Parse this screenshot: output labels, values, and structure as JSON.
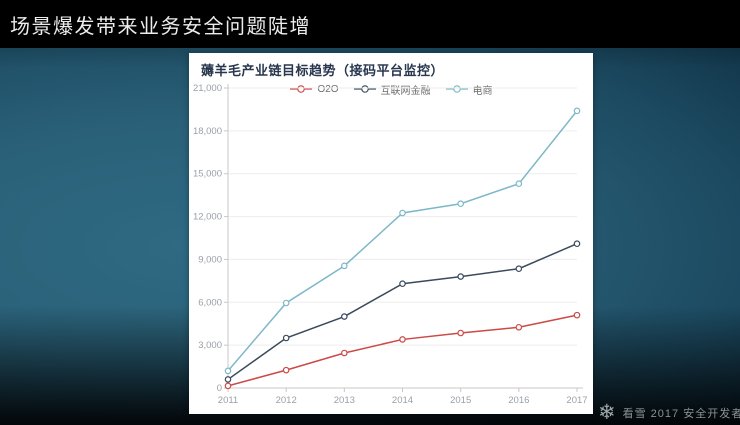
{
  "slide": {
    "title": "场景爆发带来业务安全问题陡增"
  },
  "footer": {
    "logo_icon": "snowflake-icon",
    "brand_text": "看雪 2017 安全开发者"
  },
  "chart_data": {
    "type": "line",
    "title": "薅羊毛产业链目标趋势（接码平台监控）",
    "x": [
      "2011",
      "2012",
      "2013",
      "2014",
      "2015",
      "2016",
      "2017"
    ],
    "xlabel": "",
    "ylabel": "",
    "ylim": [
      0,
      21000
    ],
    "ytick_step": 3000,
    "grid": true,
    "legend_position": "top-center",
    "marker": "open-circle",
    "series": [
      {
        "name": "O2O",
        "color": "#cc4946",
        "values": [
          150,
          1250,
          2450,
          3400,
          3850,
          4250,
          5100
        ]
      },
      {
        "name": "互联网金融",
        "color": "#3b4a5c",
        "values": [
          600,
          3500,
          5000,
          7300,
          7800,
          8350,
          10100
        ]
      },
      {
        "name": "电商",
        "color": "#7db8c8",
        "values": [
          1200,
          5950,
          8550,
          12250,
          12900,
          14300,
          19400
        ]
      }
    ]
  }
}
